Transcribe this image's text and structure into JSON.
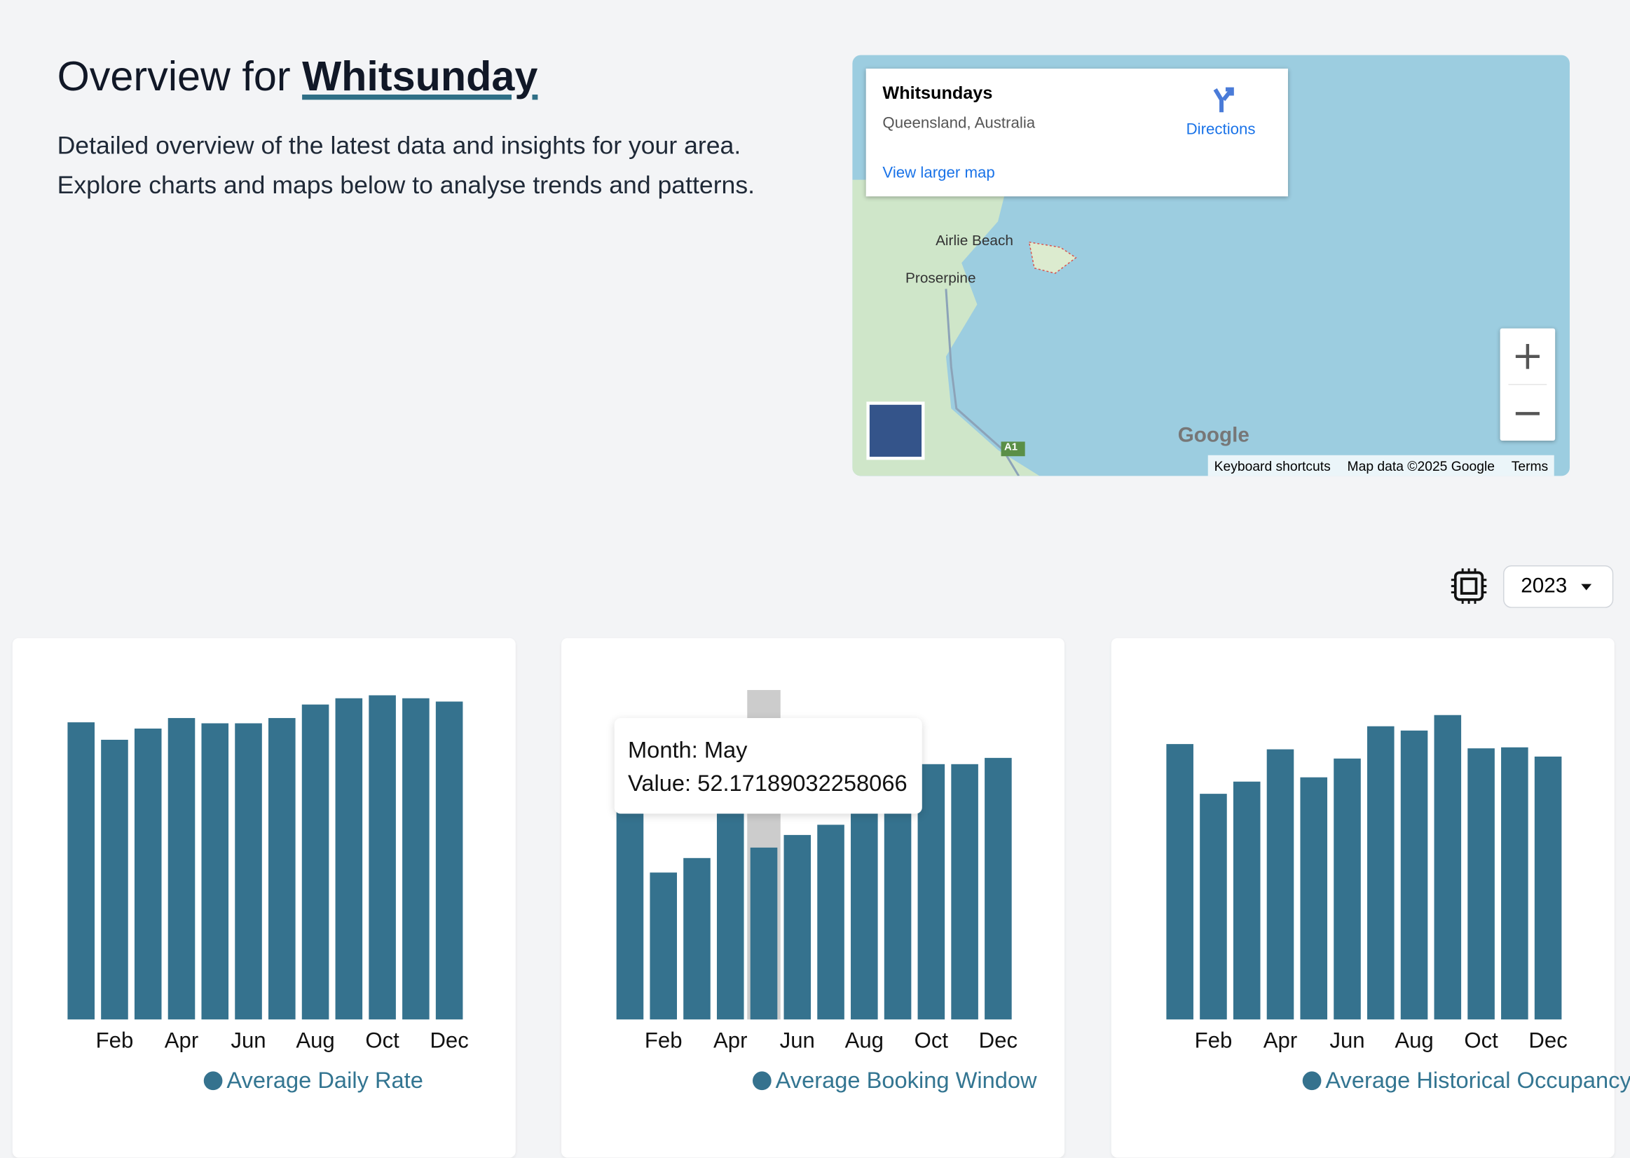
{
  "header": {
    "title_prefix": "Overview for",
    "title_place": "Whitsunday",
    "description": [
      "Detailed overview of the latest data and insights for your area.",
      "Explore charts and maps below to analyse trends and patterns."
    ]
  },
  "map": {
    "place": "Whitsundays",
    "region": "Queensland, Australia",
    "directions": "Directions",
    "larger": "View larger map",
    "towns": [
      "Airlie Beach",
      "Proserpine"
    ],
    "road": "A1",
    "logo": "Google",
    "footer": [
      "Keyboard shortcuts",
      "Map data ©2025 Google",
      "Terms"
    ]
  },
  "year": "2023",
  "tooltip": {
    "month": "Month: May",
    "value": "Value: 52.17189032258066"
  },
  "chart_data": [
    {
      "type": "bar",
      "categories": [
        null,
        "Feb",
        null,
        "Apr",
        null,
        "Jun",
        null,
        "Aug",
        null,
        "Oct",
        null,
        "Dec"
      ],
      "series": [
        {
          "name": "Average Daily Rate",
          "color": "#35728e",
          "values": [
            90.2,
            84.9,
            88.3,
            91.5,
            89.9,
            89.9,
            91.5,
            95.6,
            97.5,
            98.4,
            97.5,
            96.5
          ]
        }
      ],
      "ylim": [
        0,
        100
      ]
    },
    {
      "type": "bar",
      "categories": [
        null,
        "Feb",
        null,
        "Apr",
        null,
        "Jun",
        null,
        "Aug",
        null,
        "Oct",
        null,
        "Dec"
      ],
      "series": [
        {
          "name": "Average Booking Window",
          "color": "#35728e",
          "values": [
            66.7,
            44.6,
            49.0,
            66.7,
            52.17189032258066,
            56.0,
            59.1,
            65.0,
            74.6,
            77.5,
            77.5,
            79.4
          ]
        }
      ],
      "ylim": [
        0,
        100
      ]
    },
    {
      "type": "bar",
      "categories": [
        null,
        "Feb",
        null,
        "Apr",
        null,
        "Jun",
        null,
        "Aug",
        null,
        "Oct",
        null,
        "Dec"
      ],
      "series": [
        {
          "name": "Average Historical Occupancy",
          "color": "#35728e",
          "values": [
            83.6,
            68.5,
            72.2,
            82.0,
            73.5,
            79.2,
            89.0,
            87.7,
            92.4,
            82.3,
            82.6,
            79.8
          ]
        }
      ],
      "ylim": [
        0,
        100
      ]
    }
  ]
}
